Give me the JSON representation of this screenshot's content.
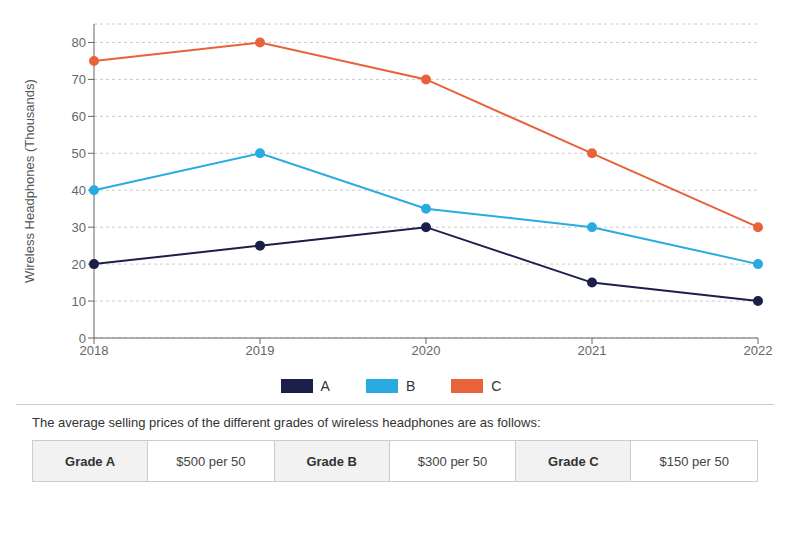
{
  "chart_data": {
    "type": "line",
    "ylabel": "Wireless Headphones (Thousands)",
    "categories": [
      "2018",
      "2019",
      "2020",
      "2021",
      "2022"
    ],
    "series": [
      {
        "name": "A",
        "color": "#1c1f4a",
        "marker": "circle",
        "line_style": "solid",
        "values": [
          20,
          25,
          30,
          15,
          10
        ]
      },
      {
        "name": "B",
        "color": "#29abe2",
        "marker": "circle",
        "line_style": "solid",
        "values": [
          40,
          50,
          35,
          30,
          20
        ]
      },
      {
        "name": "C",
        "color": "#e8623a",
        "marker": "circle",
        "line_style": "solid",
        "values": [
          75,
          80,
          70,
          50,
          30
        ]
      }
    ],
    "ylim": [
      0,
      85
    ],
    "yticks": [
      0,
      10,
      20,
      30,
      40,
      50,
      60,
      70,
      80
    ],
    "grid": true,
    "legend": "bottom",
    "annotations": [
      "The average selling prices of the different grades of wireless headphones are as follows:",
      "Grade A",
      "$500 per 50",
      "Grade B",
      "$300 per 50",
      "Grade C",
      "$150 per 50"
    ]
  }
}
